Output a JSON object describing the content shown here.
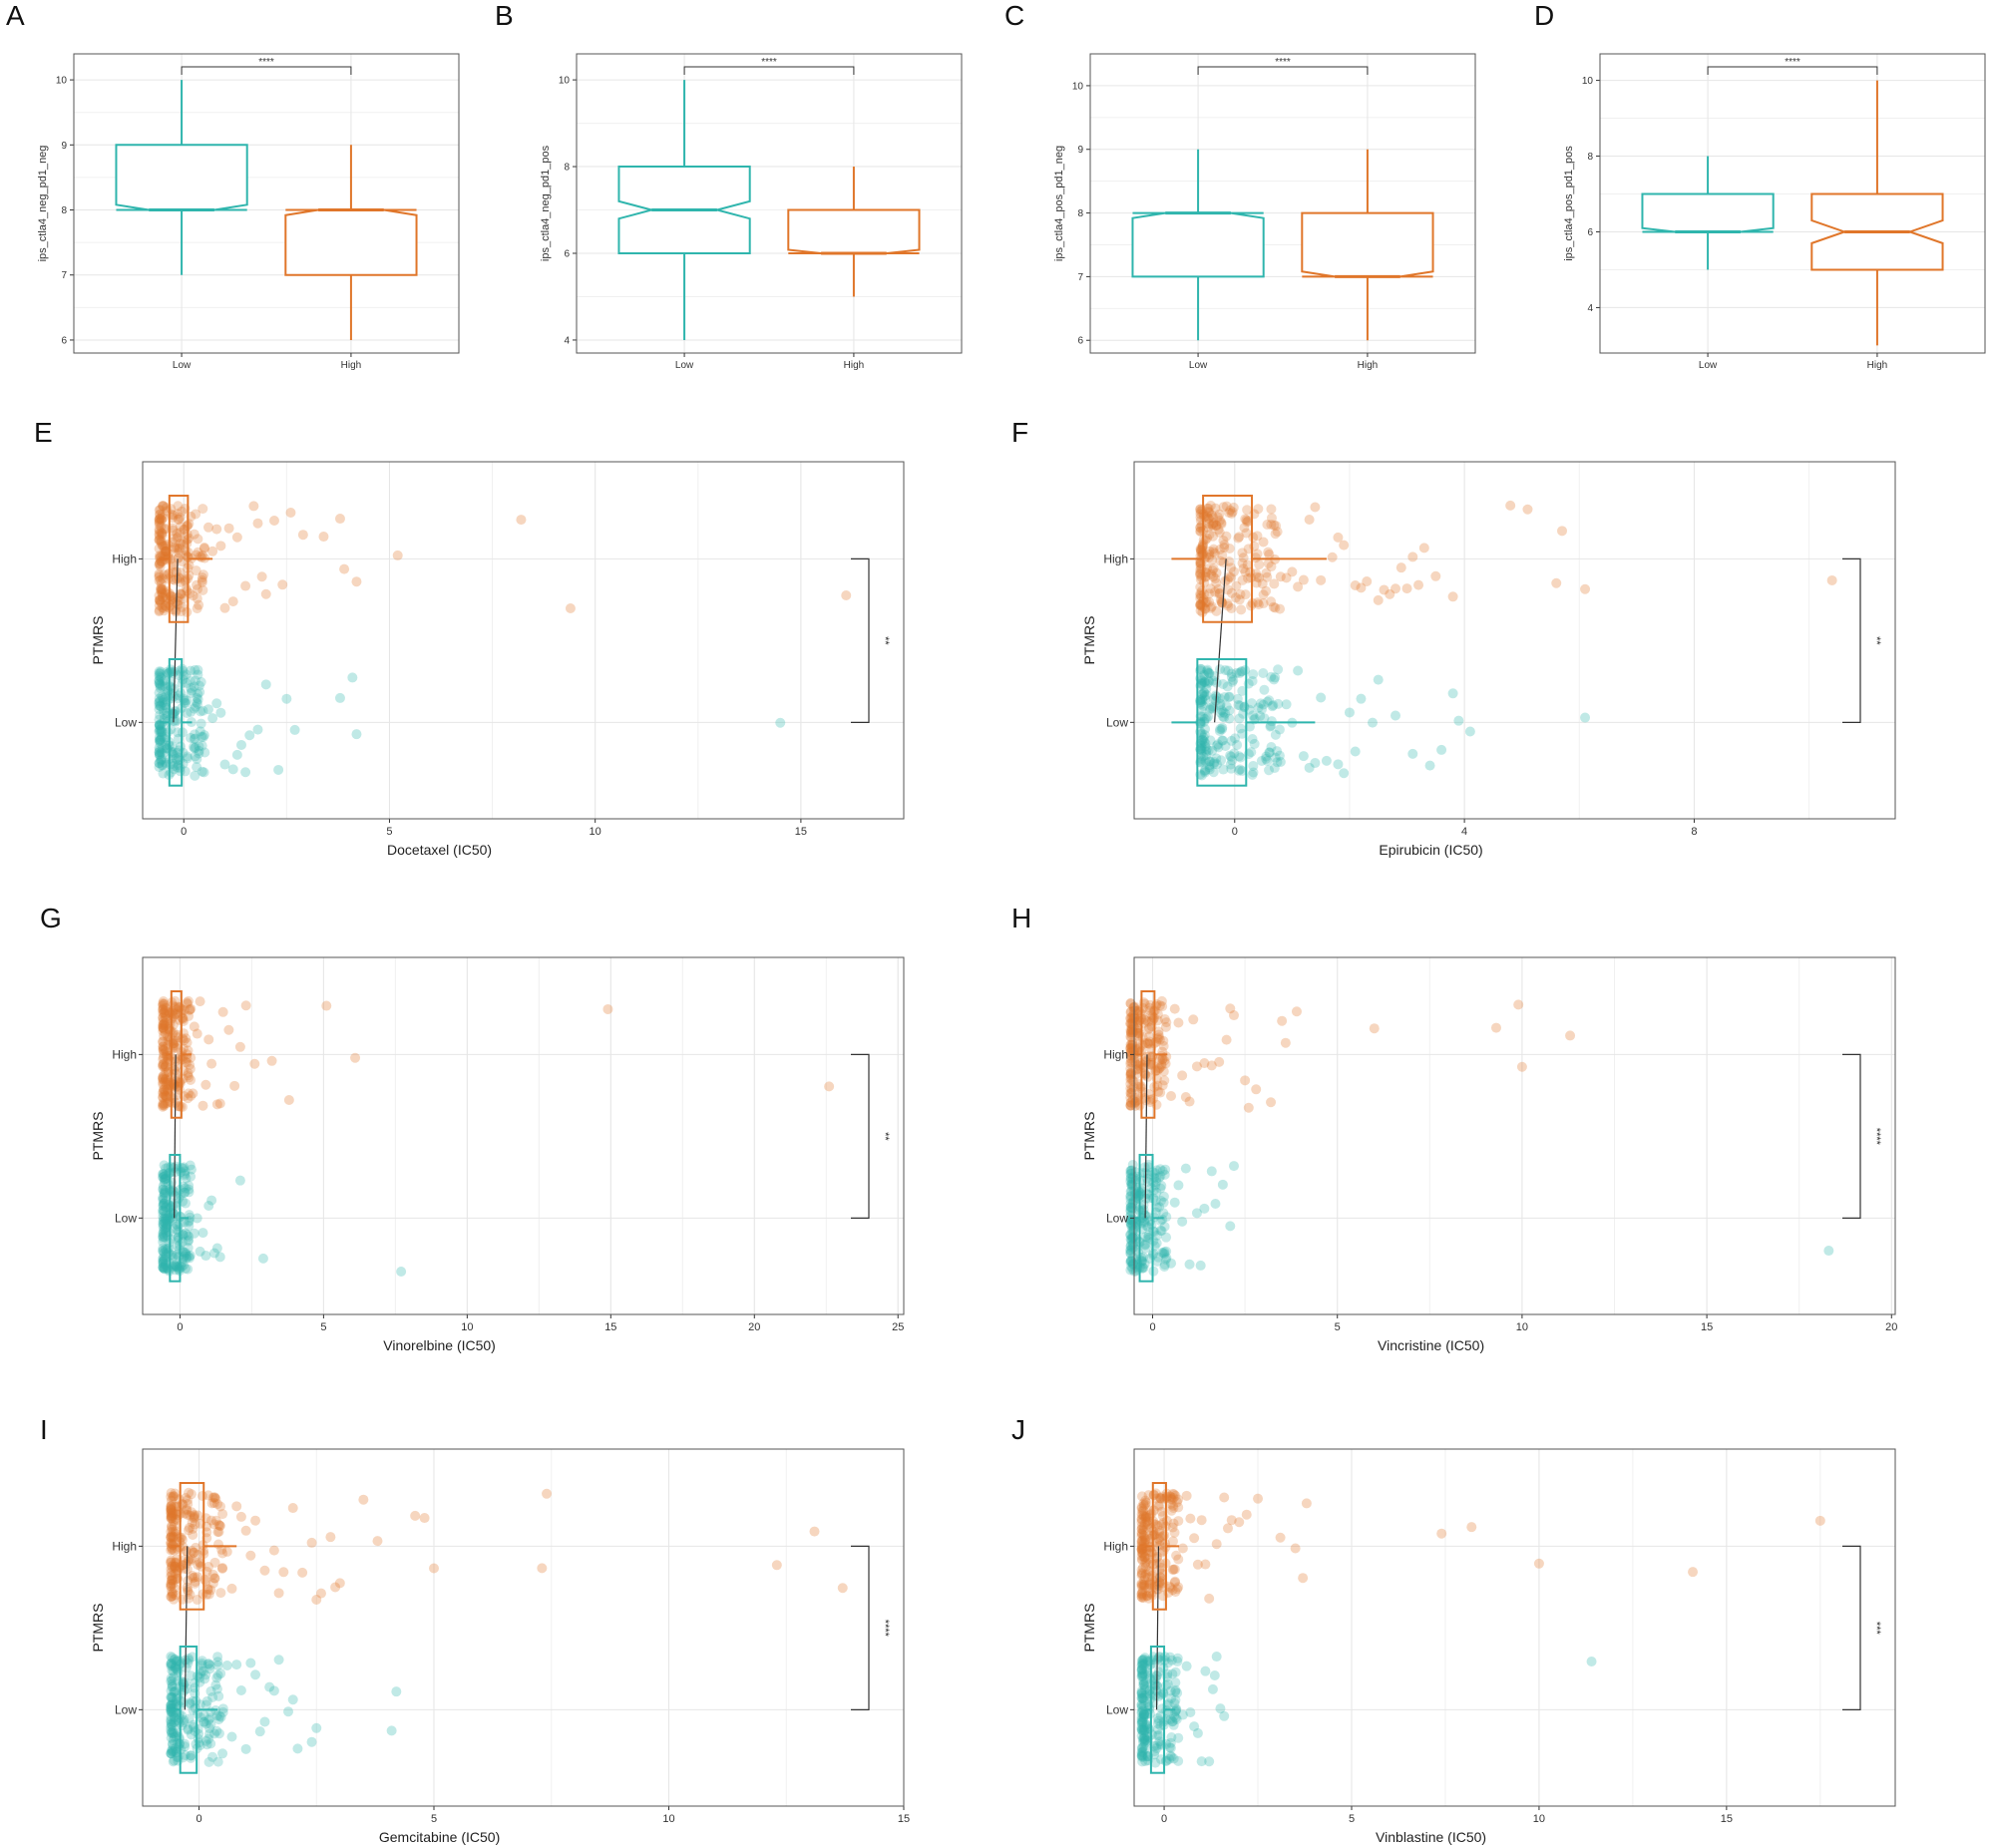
{
  "colors": {
    "low": "#2fb5ad",
    "high": "#e0762a",
    "grid": "#e6e6e6",
    "frame": "#555555",
    "bracket": "#333333"
  },
  "chart_data": [
    {
      "panel": "A",
      "type": "box",
      "orientation": "vertical",
      "notched": true,
      "categories": [
        "Low",
        "High"
      ],
      "ylabel": "ips_ctla4_neg_pd1_neg",
      "ylim": [
        5.8,
        10.4
      ],
      "yticks": [
        6,
        7,
        8,
        9,
        10
      ],
      "boxes": [
        {
          "group": "Low",
          "min": 7,
          "q1": 8,
          "median": 8,
          "q3": 9,
          "max": 10,
          "notch": [
            7.92,
            8.08
          ]
        },
        {
          "group": "High",
          "min": 6,
          "q1": 7,
          "median": 8,
          "q3": 8,
          "max": 9,
          "notch": [
            7.92,
            8.08
          ]
        }
      ],
      "significance": "****"
    },
    {
      "panel": "B",
      "type": "box",
      "orientation": "vertical",
      "notched": true,
      "categories": [
        "Low",
        "High"
      ],
      "ylabel": "ips_ctla4_neg_pd1_pos",
      "ylim": [
        3.7,
        10.6
      ],
      "yticks": [
        4,
        6,
        8,
        10
      ],
      "boxes": [
        {
          "group": "Low",
          "min": 4,
          "q1": 6,
          "median": 7,
          "q3": 8,
          "max": 10,
          "notch": [
            6.8,
            7.2
          ]
        },
        {
          "group": "High",
          "min": 5,
          "q1": 6,
          "median": 6,
          "q3": 7,
          "max": 8,
          "notch": [
            5.92,
            6.08
          ]
        }
      ],
      "significance": "****"
    },
    {
      "panel": "C",
      "type": "box",
      "orientation": "vertical",
      "notched": true,
      "categories": [
        "Low",
        "High"
      ],
      "ylabel": "ips_ctla4_pos_pd1_neg",
      "ylim": [
        5.8,
        10.5
      ],
      "yticks": [
        6,
        7,
        8,
        9,
        10
      ],
      "boxes": [
        {
          "group": "Low",
          "min": 6,
          "q1": 7,
          "median": 8,
          "q3": 8,
          "max": 9,
          "notch": [
            7.92,
            8.08
          ]
        },
        {
          "group": "High",
          "min": 6,
          "q1": 7,
          "median": 7,
          "q3": 8,
          "max": 9,
          "notch": [
            6.92,
            7.08
          ]
        }
      ],
      "significance": "****"
    },
    {
      "panel": "D",
      "type": "box",
      "orientation": "vertical",
      "notched": true,
      "categories": [
        "Low",
        "High"
      ],
      "ylabel": "ips_ctla4_pos_pd1_pos",
      "ylim": [
        2.8,
        10.7
      ],
      "yticks": [
        4,
        6,
        8,
        10
      ],
      "boxes": [
        {
          "group": "Low",
          "min": 5,
          "q1": 6,
          "median": 6,
          "q3": 7,
          "max": 8,
          "notch": [
            5.9,
            6.1
          ]
        },
        {
          "group": "High",
          "min": 3,
          "q1": 5,
          "median": 6,
          "q3": 7,
          "max": 10,
          "notch": [
            5.7,
            6.3
          ]
        }
      ],
      "significance": "****"
    },
    {
      "panel": "E",
      "type": "scatter",
      "orientation": "horizontal",
      "xlabel": "Docetaxel (IC50)",
      "ylabel": "PTMRS",
      "categories": [
        "Low",
        "High"
      ],
      "xlim": [
        -1,
        17.5
      ],
      "xticks": [
        0,
        5,
        10,
        15
      ],
      "boxes": [
        {
          "group": "High",
          "q1": -0.35,
          "median": -0.15,
          "q3": 0.1,
          "whisker_low": -0.6,
          "whisker_high": 0.7
        },
        {
          "group": "Low",
          "q1": -0.35,
          "median": -0.25,
          "q3": -0.05,
          "whisker_low": -0.6,
          "whisker_high": 0.2
        }
      ],
      "spread": 0.8,
      "points": {
        "High": [
          9.4,
          3.8,
          3.9,
          4.2,
          3.4,
          5.2,
          8.2,
          16.1,
          2.9,
          2.6,
          2.2,
          2.0,
          1.8,
          1.7,
          1.5,
          1.3,
          1.2,
          1.1,
          1.0,
          0.9,
          0.8,
          0.7,
          0.6,
          0.5,
          0.45,
          0.4,
          2.4,
          1.9
        ],
        "Low": [
          14.5,
          3.8,
          4.2,
          4.1,
          2.7,
          2.5,
          2.3,
          2.0,
          1.8,
          1.6,
          1.4,
          1.2,
          1.0,
          0.8,
          0.7,
          0.6,
          0.5,
          0.4,
          1.5,
          1.3,
          0.9
        ]
      },
      "significance": "**"
    },
    {
      "panel": "F",
      "type": "scatter",
      "orientation": "horizontal",
      "xlabel": "Epirubicin (IC50)",
      "ylabel": "PTMRS",
      "categories": [
        "Low",
        "High"
      ],
      "xlim": [
        -1.75,
        11.5
      ],
      "xticks": [
        0,
        4,
        8
      ],
      "boxes": [
        {
          "group": "High",
          "q1": -0.55,
          "median": -0.15,
          "q3": 0.3,
          "whisker_low": -1.1,
          "whisker_high": 1.6
        },
        {
          "group": "Low",
          "q1": -0.65,
          "median": -0.35,
          "q3": 0.2,
          "whisker_low": -1.1,
          "whisker_high": 1.4
        }
      ],
      "spread": 1.0,
      "points": {
        "High": [
          4.8,
          5.6,
          5.7,
          6.1,
          5.1,
          10.4,
          3.5,
          3.8,
          3.3,
          3.1,
          2.9,
          2.7,
          2.5,
          2.3,
          2.1,
          1.9,
          1.7,
          1.5,
          1.4,
          1.3,
          1.2,
          1.1,
          1.0,
          0.9,
          0.8,
          0.7,
          0.6,
          0.5,
          0.4,
          2.8,
          2.2,
          3.0,
          1.8,
          2.6,
          3.2
        ],
        "Low": [
          6.1,
          4.1,
          3.8,
          3.9,
          3.4,
          3.1,
          2.8,
          2.5,
          2.2,
          2.0,
          1.8,
          1.6,
          1.5,
          1.4,
          1.3,
          1.2,
          1.1,
          1.0,
          0.9,
          0.8,
          0.7,
          0.6,
          0.5,
          2.4,
          1.9,
          3.6,
          2.1
        ]
      },
      "significance": "**"
    },
    {
      "panel": "G",
      "type": "scatter",
      "orientation": "horizontal",
      "xlabel": "Vinorelbine (IC50)",
      "ylabel": "PTMRS",
      "categories": [
        "Low",
        "High"
      ],
      "xlim": [
        -1.3,
        25.2
      ],
      "xticks": [
        0,
        5,
        10,
        15,
        20,
        25
      ],
      "boxes": [
        {
          "group": "High",
          "q1": -0.3,
          "median": -0.15,
          "q3": 0.05,
          "whisker_low": -0.5,
          "whisker_high": 0.4
        },
        {
          "group": "Low",
          "q1": -0.35,
          "median": -0.2,
          "q3": 0.0,
          "whisker_low": -0.5,
          "whisker_high": 0.3
        }
      ],
      "spread": 0.7,
      "points": {
        "High": [
          5.1,
          3.8,
          2.6,
          3.2,
          6.1,
          14.9,
          22.6,
          2.1,
          1.9,
          1.7,
          1.5,
          1.3,
          1.1,
          1.0,
          0.9,
          0.8,
          0.7,
          0.6,
          0.5,
          0.45,
          2.3,
          1.4
        ],
        "Low": [
          2.9,
          7.7,
          2.1,
          1.4,
          1.2,
          1.1,
          1.0,
          0.9,
          0.8,
          0.7,
          0.6,
          0.5,
          0.4,
          1.3
        ]
      },
      "significance": "**"
    },
    {
      "panel": "H",
      "type": "scatter",
      "orientation": "horizontal",
      "xlabel": "Vincristine (IC50)",
      "ylabel": "PTMRS",
      "categories": [
        "Low",
        "High"
      ],
      "xlim": [
        -0.5,
        20.1
      ],
      "xticks": [
        0,
        5,
        10,
        15,
        20
      ],
      "boxes": [
        {
          "group": "High",
          "q1": -0.3,
          "median": -0.15,
          "q3": 0.05,
          "whisker_low": -0.5,
          "whisker_high": 0.4
        },
        {
          "group": "Low",
          "q1": -0.35,
          "median": -0.2,
          "q3": 0.0,
          "whisker_low": -0.5,
          "whisker_high": 0.3
        }
      ],
      "spread": 0.7,
      "points": {
        "High": [
          9.3,
          9.9,
          10.0,
          11.3,
          6.0,
          2.5,
          2.8,
          3.2,
          3.6,
          3.9,
          2.2,
          2.0,
          1.8,
          1.6,
          1.4,
          1.2,
          1.1,
          1.0,
          0.9,
          0.8,
          0.7,
          0.6,
          0.5,
          2.6,
          3.5,
          2.1
        ],
        "Low": [
          18.3,
          2.2,
          2.1,
          1.9,
          1.6,
          1.4,
          1.2,
          1.0,
          0.9,
          0.8,
          0.7,
          0.6,
          0.5,
          1.7,
          1.3
        ]
      },
      "significance": "****"
    },
    {
      "panel": "I",
      "type": "scatter",
      "orientation": "horizontal",
      "xlabel": "Gemcitabine (IC50)",
      "ylabel": "PTMRS",
      "categories": [
        "Low",
        "High"
      ],
      "xlim": [
        -1.2,
        15.0
      ],
      "xticks": [
        0,
        5,
        10,
        15
      ],
      "boxes": [
        {
          "group": "High",
          "q1": -0.4,
          "median": -0.25,
          "q3": 0.1,
          "whisker_low": -0.6,
          "whisker_high": 0.8
        },
        {
          "group": "Low",
          "q1": -0.4,
          "median": -0.3,
          "q3": -0.05,
          "whisker_low": -0.6,
          "whisker_high": 0.4
        }
      ],
      "spread": 0.8,
      "points": {
        "High": [
          12.3,
          13.1,
          13.7,
          7.3,
          7.4,
          4.6,
          4.8,
          5.0,
          3.5,
          3.8,
          3.0,
          2.8,
          2.6,
          2.4,
          2.2,
          2.0,
          1.8,
          1.6,
          1.4,
          1.2,
          1.1,
          1.0,
          0.9,
          0.8,
          0.7,
          0.6,
          0.5,
          2.9,
          2.5,
          1.7
        ],
        "Low": [
          4.1,
          4.2,
          2.4,
          2.5,
          2.1,
          1.9,
          1.7,
          1.5,
          1.3,
          1.2,
          1.1,
          1.0,
          0.9,
          0.8,
          0.7,
          0.6,
          0.5,
          0.4,
          1.6,
          2.0,
          1.4
        ]
      },
      "significance": "****"
    },
    {
      "panel": "J",
      "type": "scatter",
      "orientation": "horizontal",
      "xlabel": "Vinblastine (IC50)",
      "ylabel": "PTMRS",
      "categories": [
        "Low",
        "High"
      ],
      "xlim": [
        -0.8,
        19.5
      ],
      "xticks": [
        0,
        5,
        10,
        15
      ],
      "boxes": [
        {
          "group": "High",
          "q1": -0.3,
          "median": -0.15,
          "q3": 0.05,
          "whisker_low": -0.5,
          "whisker_high": 0.4
        },
        {
          "group": "Low",
          "q1": -0.35,
          "median": -0.2,
          "q3": 0.0,
          "whisker_low": -0.5,
          "whisker_high": 0.3
        }
      ],
      "spread": 0.7,
      "points": {
        "High": [
          17.5,
          14.1,
          10.0,
          8.2,
          7.4,
          3.7,
          3.8,
          3.1,
          2.5,
          3.5,
          2.2,
          2.0,
          1.8,
          1.6,
          1.4,
          1.2,
          1.1,
          1.0,
          0.9,
          0.8,
          0.7,
          0.6,
          0.5,
          1.7
        ],
        "Low": [
          11.4,
          1.6,
          1.5,
          1.4,
          1.3,
          1.2,
          1.1,
          1.0,
          0.9,
          0.8,
          0.7,
          0.6,
          0.5,
          1.35
        ]
      },
      "significance": "***"
    }
  ]
}
